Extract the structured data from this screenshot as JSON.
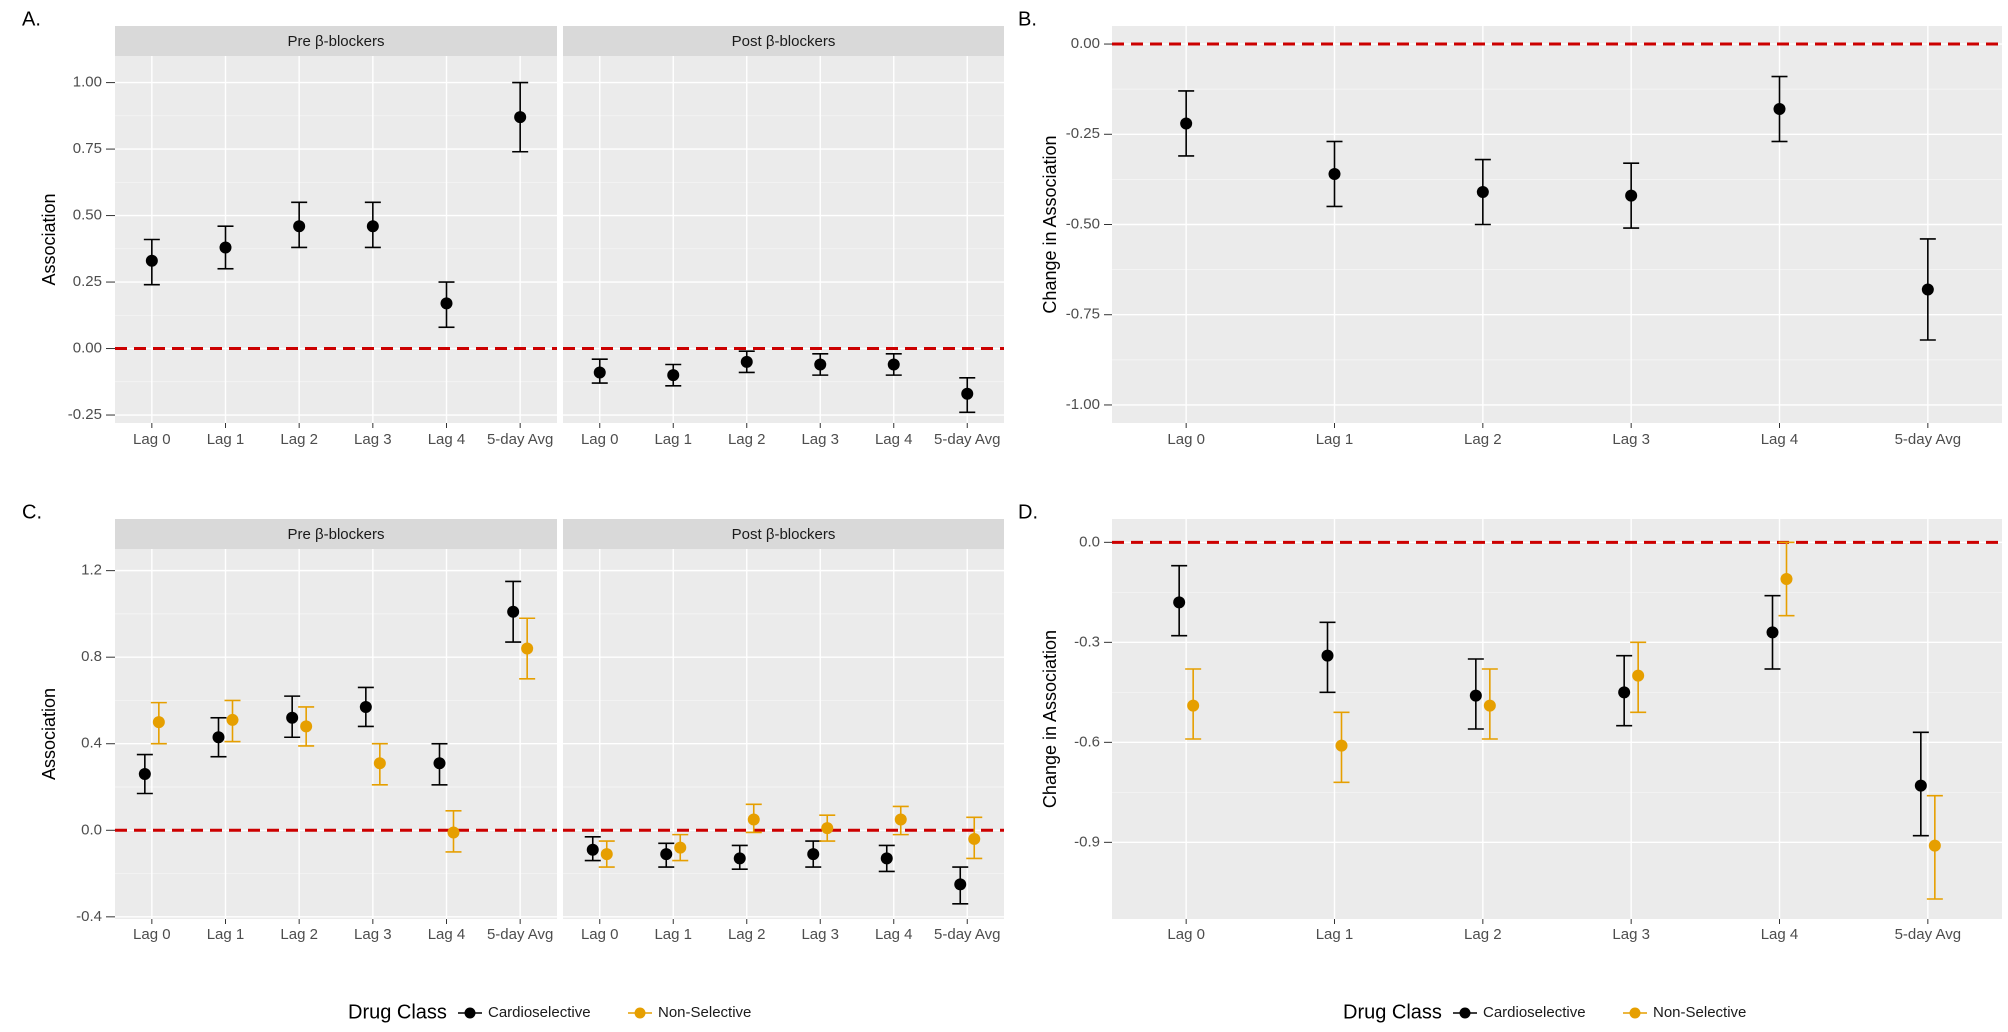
{
  "colors": {
    "panel_bg": "#ebebeb",
    "strip_bg": "#d9d9d9",
    "grid": "#ffffff",
    "reference_line": "#cc0000",
    "cardioselective": "#000000",
    "non_selective": "#e69f00",
    "tick_text": "#4d4d4d"
  },
  "chart_data": [
    {
      "type": "scatter",
      "panel_label": "A.",
      "facets": [
        "Pre β-blockers",
        "Post β-blockers"
      ],
      "categories": [
        "Lag 0",
        "Lag 1",
        "Lag 2",
        "Lag 3",
        "Lag 4",
        "5-day Avg"
      ],
      "ylabel": "Association",
      "ylim": [
        -0.28,
        1.1
      ],
      "yticks": [
        -0.25,
        0,
        0.25,
        0.5,
        0.75,
        1
      ],
      "ytick_labels": [
        "-0.25",
        "0.00",
        "0.25",
        "0.50",
        "0.75",
        "1.00"
      ],
      "reference_y": 0,
      "series": [
        {
          "key": "cardioselective",
          "facet_values": [
            [
              {
                "y": 0.33,
                "lo": 0.24,
                "hi": 0.41
              },
              {
                "y": 0.38,
                "lo": 0.3,
                "hi": 0.46
              },
              {
                "y": 0.46,
                "lo": 0.38,
                "hi": 0.55
              },
              {
                "y": 0.46,
                "lo": 0.38,
                "hi": 0.55
              },
              {
                "y": 0.17,
                "lo": 0.08,
                "hi": 0.25
              },
              {
                "y": 0.87,
                "lo": 0.74,
                "hi": 1.0
              }
            ],
            [
              {
                "y": -0.09,
                "lo": -0.13,
                "hi": -0.04
              },
              {
                "y": -0.1,
                "lo": -0.14,
                "hi": -0.06
              },
              {
                "y": -0.05,
                "lo": -0.09,
                "hi": -0.01
              },
              {
                "y": -0.06,
                "lo": -0.1,
                "hi": -0.02
              },
              {
                "y": -0.06,
                "lo": -0.1,
                "hi": -0.02
              },
              {
                "y": -0.17,
                "lo": -0.24,
                "hi": -0.11
              }
            ]
          ]
        }
      ]
    },
    {
      "type": "scatter",
      "panel_label": "B.",
      "categories": [
        "Lag 0",
        "Lag 1",
        "Lag 2",
        "Lag 3",
        "Lag 4",
        "5-day Avg"
      ],
      "ylabel": "Change in Association",
      "ylim": [
        -1.05,
        0.05
      ],
      "yticks": [
        -1,
        -0.75,
        -0.5,
        -0.25,
        0
      ],
      "ytick_labels": [
        "-1.00",
        "-0.75",
        "-0.50",
        "-0.25",
        "0.00"
      ],
      "reference_y": 0,
      "series": [
        {
          "key": "cardioselective",
          "values": [
            {
              "y": -0.22,
              "lo": -0.31,
              "hi": -0.13
            },
            {
              "y": -0.36,
              "lo": -0.45,
              "hi": -0.27
            },
            {
              "y": -0.41,
              "lo": -0.5,
              "hi": -0.32
            },
            {
              "y": -0.42,
              "lo": -0.51,
              "hi": -0.33
            },
            {
              "y": -0.18,
              "lo": -0.27,
              "hi": -0.09
            },
            {
              "y": -0.68,
              "lo": -0.82,
              "hi": -0.54
            }
          ]
        }
      ]
    },
    {
      "type": "scatter",
      "panel_label": "C.",
      "facets": [
        "Pre β-blockers",
        "Post β-blockers"
      ],
      "categories": [
        "Lag 0",
        "Lag 1",
        "Lag 2",
        "Lag 3",
        "Lag 4",
        "5-day Avg"
      ],
      "ylabel": "Association",
      "ylim": [
        -0.41,
        1.3
      ],
      "yticks": [
        -0.4,
        0,
        0.4,
        0.8,
        1.2
      ],
      "ytick_labels": [
        "-0.4",
        "0.0",
        "0.4",
        "0.8",
        "1.2"
      ],
      "reference_y": 0,
      "series": [
        {
          "key": "cardioselective",
          "facet_values": [
            [
              {
                "y": 0.26,
                "lo": 0.17,
                "hi": 0.35
              },
              {
                "y": 0.43,
                "lo": 0.34,
                "hi": 0.52
              },
              {
                "y": 0.52,
                "lo": 0.43,
                "hi": 0.62
              },
              {
                "y": 0.57,
                "lo": 0.48,
                "hi": 0.66
              },
              {
                "y": 0.31,
                "lo": 0.21,
                "hi": 0.4
              },
              {
                "y": 1.01,
                "lo": 0.87,
                "hi": 1.15
              }
            ],
            [
              {
                "y": -0.09,
                "lo": -0.14,
                "hi": -0.03
              },
              {
                "y": -0.11,
                "lo": -0.17,
                "hi": -0.06
              },
              {
                "y": -0.13,
                "lo": -0.18,
                "hi": -0.07
              },
              {
                "y": -0.11,
                "lo": -0.17,
                "hi": -0.05
              },
              {
                "y": -0.13,
                "lo": -0.19,
                "hi": -0.07
              },
              {
                "y": -0.25,
                "lo": -0.34,
                "hi": -0.17
              }
            ]
          ]
        },
        {
          "key": "non_selective",
          "facet_values": [
            [
              {
                "y": 0.5,
                "lo": 0.4,
                "hi": 0.59
              },
              {
                "y": 0.51,
                "lo": 0.41,
                "hi": 0.6
              },
              {
                "y": 0.48,
                "lo": 0.39,
                "hi": 0.57
              },
              {
                "y": 0.31,
                "lo": 0.21,
                "hi": 0.4
              },
              {
                "y": -0.01,
                "lo": -0.1,
                "hi": 0.09
              },
              {
                "y": 0.84,
                "lo": 0.7,
                "hi": 0.98
              }
            ],
            [
              {
                "y": -0.11,
                "lo": -0.17,
                "hi": -0.05
              },
              {
                "y": -0.08,
                "lo": -0.14,
                "hi": -0.02
              },
              {
                "y": 0.05,
                "lo": -0.01,
                "hi": 0.12
              },
              {
                "y": 0.01,
                "lo": -0.05,
                "hi": 0.07
              },
              {
                "y": 0.05,
                "lo": -0.02,
                "hi": 0.11
              },
              {
                "y": -0.04,
                "lo": -0.13,
                "hi": 0.06
              }
            ]
          ]
        }
      ]
    },
    {
      "type": "scatter",
      "panel_label": "D.",
      "categories": [
        "Lag 0",
        "Lag 1",
        "Lag 2",
        "Lag 3",
        "Lag 4",
        "5-day Avg"
      ],
      "ylabel": "Change in Association",
      "ylim": [
        -1.13,
        0.07
      ],
      "yticks": [
        -0.9,
        -0.6,
        -0.3,
        0
      ],
      "ytick_labels": [
        "-0.9",
        "-0.6",
        "-0.3",
        "0.0"
      ],
      "reference_y": 0,
      "series": [
        {
          "key": "cardioselective",
          "values": [
            {
              "y": -0.18,
              "lo": -0.28,
              "hi": -0.07
            },
            {
              "y": -0.34,
              "lo": -0.45,
              "hi": -0.24
            },
            {
              "y": -0.46,
              "lo": -0.56,
              "hi": -0.35
            },
            {
              "y": -0.45,
              "lo": -0.55,
              "hi": -0.34
            },
            {
              "y": -0.27,
              "lo": -0.38,
              "hi": -0.16
            },
            {
              "y": -0.73,
              "lo": -0.88,
              "hi": -0.57
            }
          ]
        },
        {
          "key": "non_selective",
          "values": [
            {
              "y": -0.49,
              "lo": -0.59,
              "hi": -0.38
            },
            {
              "y": -0.61,
              "lo": -0.72,
              "hi": -0.51
            },
            {
              "y": -0.49,
              "lo": -0.59,
              "hi": -0.38
            },
            {
              "y": -0.4,
              "lo": -0.51,
              "hi": -0.3
            },
            {
              "y": -0.11,
              "lo": -0.22,
              "hi": 0.0
            },
            {
              "y": -0.91,
              "lo": -1.07,
              "hi": -0.76
            }
          ]
        }
      ]
    }
  ],
  "legend": {
    "title": "Drug Class",
    "items": [
      {
        "key": "cardioselective",
        "label": "Cardioselective"
      },
      {
        "key": "non_selective",
        "label": "Non-Selective"
      }
    ]
  }
}
